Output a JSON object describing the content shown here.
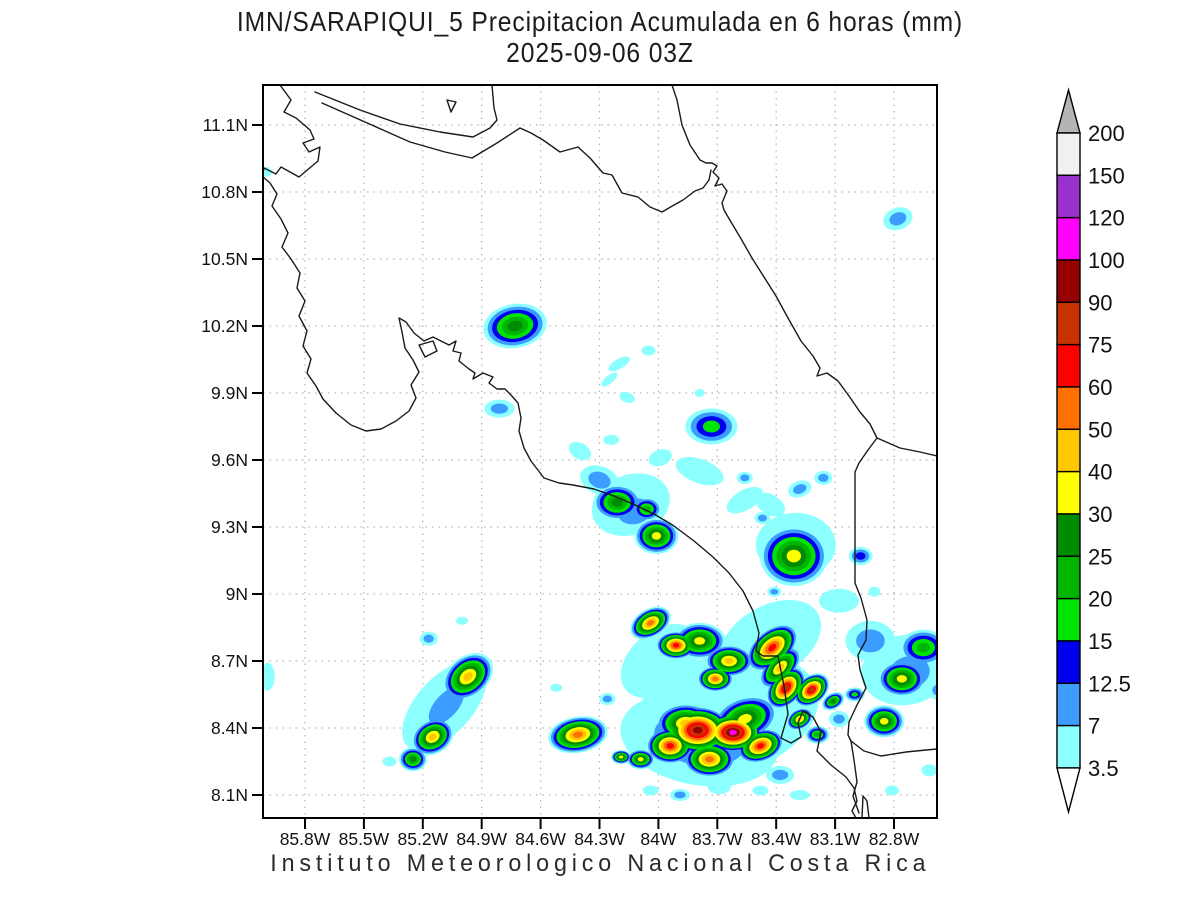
{
  "title": {
    "line1": "IMN/SARAPIQUI_5 Precipitacion Acumulada en 6 horas (mm)",
    "line2": "2025-09-06 03Z"
  },
  "footer": "Instituto Meteorologico Nacional Costa Rica",
  "axes": {
    "lat_labels": [
      "11.1N",
      "10.8N",
      "10.5N",
      "10.2N",
      "9.9N",
      "9.6N",
      "9.3N",
      "9N",
      "8.7N",
      "8.4N",
      "8.1N"
    ],
    "lat_values": [
      11.1,
      10.8,
      10.5,
      10.2,
      9.9,
      9.6,
      9.3,
      9.0,
      8.7,
      8.4,
      8.1
    ],
    "lon_labels": [
      "85.8W",
      "85.5W",
      "85.2W",
      "84.9W",
      "84.6W",
      "84.3W",
      "84W",
      "83.7W",
      "83.4W",
      "83.1W",
      "82.8W"
    ],
    "lon_values": [
      85.8,
      85.5,
      85.2,
      84.9,
      84.6,
      84.3,
      84.0,
      83.7,
      83.4,
      83.1,
      82.8
    ]
  },
  "colorbar": {
    "labels": [
      "200",
      "150",
      "120",
      "100",
      "90",
      "75",
      "60",
      "50",
      "40",
      "30",
      "25",
      "20",
      "15",
      "12.5",
      "7",
      "3.5"
    ],
    "over_color": "#b4b4b4",
    "under_color": "#ffffff"
  },
  "chart_data": {
    "type": "heatmap",
    "title": "IMN/SARAPIQUI_5 Precipitacion Acumulada en 6 horas (mm)",
    "valid_time": "2025-09-06 03Z",
    "units": "mm",
    "region": "Costa Rica",
    "lon_range_w": [
      86.01,
      82.58
    ],
    "lat_range_n": [
      8.0,
      11.28
    ],
    "grid": "dotted 0.3 degree",
    "levels_mm": [
      3.5,
      7,
      12.5,
      15,
      20,
      25,
      30,
      40,
      50,
      60,
      75,
      90,
      100,
      120,
      150,
      200
    ],
    "palette": [
      "#8cffff",
      "#3c9cff",
      "#0000f0",
      "#00e400",
      "#00b400",
      "#008c00",
      "#ffff00",
      "#ffc800",
      "#ff7000",
      "#ff0000",
      "#c83200",
      "#960000",
      "#ff00ff",
      "#9932cc",
      "#f0f0f0"
    ],
    "cells_note": "Each cell: [lon_W, lat_N, rx_px, ry_px, rotation_deg, max_level_index] — concentric contour-fill blob reaching palette[max_level_index] at its core",
    "cells": [
      [
        86.0,
        10.89,
        6,
        5,
        0,
        0
      ],
      [
        85.99,
        8.63,
        7,
        14,
        0,
        0
      ],
      [
        82.78,
        10.68,
        15,
        11,
        -20,
        1
      ],
      [
        84.73,
        10.2,
        32,
        22,
        -10,
        5
      ],
      [
        84.16,
        9.88,
        8,
        5,
        20,
        0
      ],
      [
        84.81,
        9.83,
        15,
        9,
        0,
        1
      ],
      [
        84.2,
        10.03,
        12,
        5,
        -30,
        0
      ],
      [
        84.05,
        10.09,
        7,
        5,
        0,
        0
      ],
      [
        84.25,
        9.96,
        10,
        4,
        -40,
        0
      ],
      [
        83.73,
        9.75,
        26,
        18,
        0,
        3
      ],
      [
        83.56,
        9.52,
        8,
        6,
        0,
        1
      ],
      [
        83.79,
        9.9,
        5,
        4,
        0,
        0
      ],
      [
        83.99,
        9.61,
        12,
        8,
        -20,
        0
      ],
      [
        84.21,
        9.41,
        24,
        18,
        0,
        5
      ],
      [
        84.06,
        9.38,
        15,
        12,
        0,
        4
      ],
      [
        84.01,
        9.26,
        22,
        18,
        0,
        6
      ],
      [
        84.3,
        9.51,
        20,
        14,
        20,
        1
      ],
      [
        84.4,
        9.64,
        12,
        8,
        30,
        0
      ],
      [
        83.31,
        9.17,
        34,
        30,
        0,
        6
      ],
      [
        83.43,
        9.4,
        16,
        10,
        30,
        0
      ],
      [
        83.28,
        9.47,
        12,
        8,
        -20,
        1
      ],
      [
        83.16,
        9.52,
        9,
        7,
        0,
        1
      ],
      [
        83.47,
        9.34,
        8,
        6,
        0,
        1
      ],
      [
        82.97,
        9.17,
        12,
        9,
        0,
        2
      ],
      [
        82.9,
        9.01,
        6,
        5,
        0,
        0
      ],
      [
        82.65,
        8.76,
        24,
        18,
        0,
        4
      ],
      [
        82.76,
        8.62,
        24,
        18,
        0,
        6
      ],
      [
        82.85,
        8.43,
        20,
        16,
        0,
        6
      ],
      [
        82.53,
        8.78,
        14,
        11,
        0,
        4
      ],
      [
        82.57,
        8.57,
        12,
        10,
        0,
        1
      ],
      [
        82.92,
        8.79,
        25,
        20,
        0,
        1
      ],
      [
        82.62,
        8.21,
        8,
        6,
        0,
        0
      ],
      [
        82.81,
        8.12,
        7,
        5,
        0,
        0
      ],
      [
        84.97,
        8.63,
        28,
        20,
        -40,
        7
      ],
      [
        85.15,
        8.36,
        22,
        17,
        -30,
        7
      ],
      [
        85.25,
        8.26,
        14,
        12,
        0,
        5
      ],
      [
        85.17,
        8.8,
        9,
        7,
        0,
        1
      ],
      [
        85.0,
        8.88,
        6,
        4,
        0,
        0
      ],
      [
        85.37,
        8.25,
        7,
        5,
        0,
        0
      ],
      [
        84.41,
        8.37,
        30,
        18,
        -10,
        8
      ],
      [
        84.26,
        8.53,
        8,
        6,
        0,
        1
      ],
      [
        84.52,
        8.58,
        6,
        4,
        0,
        0
      ],
      [
        84.04,
        8.87,
        22,
        14,
        -30,
        8
      ],
      [
        83.91,
        8.77,
        20,
        14,
        0,
        9
      ],
      [
        83.79,
        8.79,
        26,
        18,
        0,
        6
      ],
      [
        83.64,
        8.7,
        24,
        16,
        0,
        7
      ],
      [
        83.71,
        8.62,
        18,
        13,
        0,
        8
      ],
      [
        83.42,
        8.76,
        30,
        18,
        -40,
        9
      ],
      [
        83.35,
        8.58,
        24,
        16,
        -50,
        10
      ],
      [
        83.22,
        8.57,
        20,
        14,
        -40,
        10
      ],
      [
        83.11,
        8.52,
        12,
        8,
        -30,
        5
      ],
      [
        83.0,
        8.55,
        10,
        7,
        0,
        3
      ],
      [
        83.8,
        8.39,
        34,
        24,
        0,
        11
      ],
      [
        83.62,
        8.38,
        30,
        20,
        0,
        12
      ],
      [
        83.48,
        8.32,
        24,
        16,
        -20,
        9
      ],
      [
        83.74,
        8.26,
        26,
        18,
        0,
        8
      ],
      [
        83.94,
        8.32,
        24,
        18,
        0,
        9
      ],
      [
        84.09,
        8.26,
        14,
        10,
        0,
        6
      ],
      [
        84.19,
        8.27,
        10,
        7,
        0,
        6
      ],
      [
        83.28,
        8.44,
        14,
        10,
        -30,
        7
      ],
      [
        83.19,
        8.37,
        12,
        9,
        0,
        4
      ],
      [
        83.08,
        8.44,
        10,
        8,
        0,
        1
      ],
      [
        83.38,
        8.19,
        14,
        9,
        0,
        1
      ],
      [
        83.89,
        8.1,
        10,
        6,
        0,
        1
      ],
      [
        83.69,
        8.14,
        12,
        8,
        0,
        0
      ],
      [
        84.04,
        8.12,
        8,
        5,
        0,
        0
      ],
      [
        83.48,
        8.12,
        8,
        5,
        0,
        0
      ],
      [
        83.66,
        8.46,
        95,
        60,
        -15,
        0
      ],
      [
        83.79,
        8.35,
        80,
        46,
        10,
        1
      ],
      [
        83.43,
        8.79,
        55,
        35,
        -30,
        0
      ],
      [
        83.99,
        8.7,
        45,
        30,
        -40,
        0
      ],
      [
        82.74,
        8.66,
        45,
        35,
        -10,
        0
      ],
      [
        85.09,
        8.5,
        55,
        28,
        -48,
        0
      ],
      [
        84.14,
        9.4,
        40,
        30,
        -20,
        0
      ],
      [
        83.3,
        9.22,
        40,
        32,
        0,
        0
      ],
      [
        83.08,
        8.97,
        20,
        12,
        0,
        0
      ],
      [
        83.79,
        9.55,
        25,
        12,
        20,
        0
      ],
      [
        83.56,
        9.42,
        20,
        10,
        -30,
        0
      ],
      [
        84.24,
        9.69,
        8,
        5,
        0,
        0
      ],
      [
        83.41,
        9.01,
        7,
        5,
        0,
        1
      ],
      [
        83.28,
        8.1,
        10,
        5,
        0,
        0
      ],
      [
        82.72,
        8.65,
        35,
        28,
        -10,
        1
      ],
      [
        85.08,
        8.5,
        40,
        20,
        -48,
        1
      ],
      [
        84.12,
        9.37,
        30,
        22,
        -15,
        1
      ],
      [
        83.38,
        8.67,
        26,
        14,
        -45,
        7
      ],
      [
        83.56,
        8.44,
        34,
        22,
        -20,
        6
      ],
      [
        83.86,
        8.42,
        30,
        20,
        0,
        7
      ]
    ]
  }
}
